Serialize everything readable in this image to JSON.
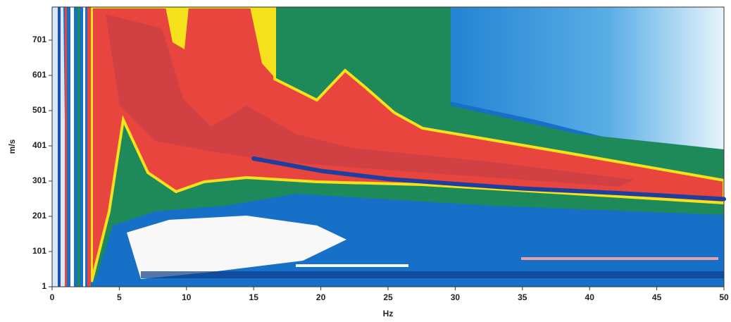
{
  "chart_data": {
    "type": "line",
    "x_label": "Hz",
    "y_label": "m/s",
    "x": [
      15,
      20,
      25,
      30,
      35,
      40,
      45,
      50
    ],
    "series": [
      {
        "color": "#1f3f9e",
        "values": [
          365,
          330,
          307,
          293,
          280,
          271,
          261,
          250
        ]
      }
    ],
    "xlim": [
      0,
      50
    ],
    "ylim": [
      1,
      795
    ],
    "xticks": [
      0,
      5,
      10,
      15,
      20,
      25,
      30,
      35,
      40,
      45,
      50
    ],
    "yticks": [
      1,
      101,
      201,
      301,
      401,
      501,
      601,
      701
    ]
  }
}
